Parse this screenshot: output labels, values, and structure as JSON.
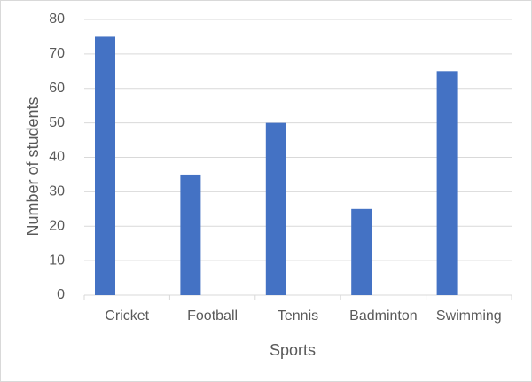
{
  "chart_data": {
    "type": "bar",
    "x_label": "Sports",
    "y_label": "Number of students",
    "categories": [
      "Cricket",
      "Football",
      "Tennis",
      "Badminton",
      "Swimming"
    ],
    "values": [
      75,
      35,
      50,
      25,
      65
    ],
    "color": "#4472c4",
    "ylim": [
      0,
      80
    ],
    "yticks": [
      0,
      10,
      20,
      30,
      40,
      50,
      60,
      70,
      80
    ],
    "grid": true
  }
}
